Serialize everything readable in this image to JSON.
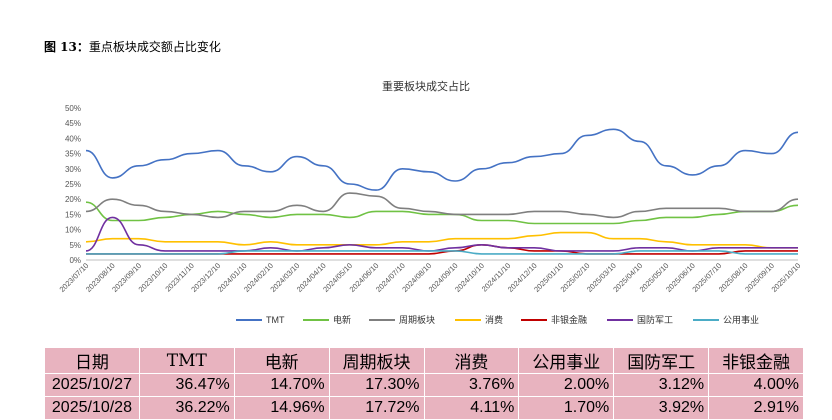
{
  "caption": {
    "label": "图 13：",
    "text": "重点板块成交额占比变化"
  },
  "chart_data": {
    "type": "line",
    "title": "重要板块成交占比",
    "ylim": [
      0,
      50
    ],
    "y_ticks": [
      "0%",
      "5%",
      "10%",
      "15%",
      "20%",
      "25%",
      "30%",
      "35%",
      "40%",
      "45%",
      "50%"
    ],
    "categories": [
      "2023/07/10",
      "2023/08/10",
      "2023/09/10",
      "2023/10/10",
      "2023/11/10",
      "2023/12/10",
      "2024/01/10",
      "2024/02/10",
      "2024/03/10",
      "2024/04/10",
      "2024/05/10",
      "2024/06/10",
      "2024/07/10",
      "2024/08/10",
      "2024/09/10",
      "2024/10/10",
      "2024/11/10",
      "2024/12/10",
      "2025/01/10",
      "2025/02/10",
      "2025/03/10",
      "2025/04/10",
      "2025/05/10",
      "2025/06/10",
      "2025/07/10",
      "2025/08/10",
      "2025/09/10",
      "2025/10/10"
    ],
    "legend_position": "bottom",
    "series": [
      {
        "name": "TMT",
        "color": "#4472c4",
        "values": [
          36,
          27,
          31,
          33,
          35,
          36,
          31,
          29,
          34,
          31,
          25,
          23,
          30,
          29,
          26,
          30,
          32,
          34,
          35,
          41,
          43,
          39,
          31,
          28,
          31,
          36,
          35,
          42
        ]
      },
      {
        "name": "电新",
        "color": "#70c244",
        "values": [
          19,
          13,
          13,
          14,
          15,
          16,
          15,
          14,
          15,
          15,
          14,
          16,
          16,
          15,
          15,
          13,
          13,
          12,
          12,
          12,
          12,
          13,
          14,
          14,
          15,
          16,
          16,
          18
        ]
      },
      {
        "name": "周期板块",
        "color": "#7f7f7f",
        "values": [
          16,
          20,
          18,
          16,
          15,
          14,
          16,
          16,
          18,
          16,
          22,
          21,
          17,
          16,
          15,
          15,
          15,
          16,
          16,
          15,
          14,
          16,
          17,
          17,
          17,
          16,
          16,
          20
        ]
      },
      {
        "name": "消费",
        "color": "#ffc000",
        "values": [
          6,
          7,
          7,
          6,
          6,
          6,
          5,
          6,
          5,
          5,
          5,
          5,
          6,
          6,
          7,
          7,
          7,
          8,
          9,
          9,
          7,
          7,
          6,
          5,
          5,
          5,
          4,
          4
        ]
      },
      {
        "name": "非银金融",
        "color": "#c00000",
        "values": [
          2,
          2,
          2,
          2,
          2,
          2,
          2,
          2,
          2,
          2,
          2,
          2,
          2,
          2,
          3,
          5,
          4,
          3,
          3,
          2,
          2,
          2,
          2,
          2,
          2,
          3,
          3,
          3
        ]
      },
      {
        "name": "国防军工",
        "color": "#7030a0",
        "values": [
          3,
          14,
          5,
          3,
          3,
          3,
          3,
          4,
          3,
          4,
          5,
          4,
          4,
          3,
          4,
          5,
          4,
          4,
          3,
          3,
          3,
          4,
          4,
          3,
          4,
          4,
          4,
          4
        ]
      },
      {
        "name": "公用事业",
        "color": "#4bacc6",
        "values": [
          2,
          2,
          2,
          2,
          2,
          2,
          3,
          3,
          3,
          3,
          3,
          3,
          3,
          3,
          3,
          2,
          2,
          2,
          2,
          2,
          2,
          3,
          3,
          3,
          3,
          2,
          2,
          2
        ]
      }
    ]
  },
  "table": {
    "headers": [
      "日期",
      "TMT",
      "电新",
      "周期板块",
      "消费",
      "公用事业",
      "国防军工",
      "非银金融"
    ],
    "rows": [
      [
        "2025/10/27",
        "36.47%",
        "14.70%",
        "17.30%",
        "3.76%",
        "2.00%",
        "3.12%",
        "4.00%"
      ],
      [
        "2025/10/28",
        "36.22%",
        "14.96%",
        "17.72%",
        "4.11%",
        "1.70%",
        "3.92%",
        "2.91%"
      ]
    ]
  }
}
